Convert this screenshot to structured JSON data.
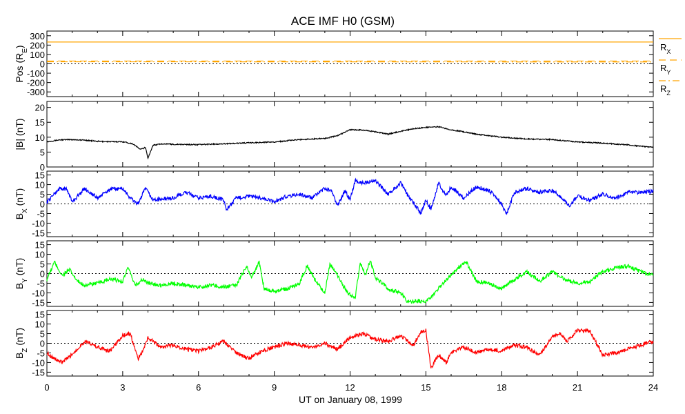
{
  "title": "ACE IMF H0 (GSM)",
  "xlabel": "UT on January 08, 1999",
  "xlim": [
    0,
    24
  ],
  "xticks": [
    0,
    3,
    6,
    9,
    12,
    15,
    18,
    21,
    24
  ],
  "colors": {
    "pos_lines": "#ffa500",
    "bmag": "#000000",
    "bx": "#0000ff",
    "by": "#00ff00",
    "bz": "#ff0000",
    "zero_line": "#000000"
  },
  "chart_data": [
    {
      "type": "line",
      "panel": "position",
      "ylabel": "Pos (R",
      "ylabel_sub": "E",
      "ylabel_end": ")",
      "ylim": [
        -350,
        350
      ],
      "yticks": [
        300,
        200,
        100,
        0,
        -100,
        -200,
        -300
      ],
      "zero_line": true,
      "x": [
        0,
        24
      ],
      "series": [
        {
          "name": "R",
          "sub": "X",
          "values": [
            233,
            233
          ],
          "style": "solid"
        },
        {
          "name": "R",
          "sub": "Y",
          "values": [
            30,
            30
          ],
          "style": "dashed"
        },
        {
          "name": "R",
          "sub": "Z",
          "values": [
            22,
            20
          ],
          "style": "dashdot"
        }
      ]
    },
    {
      "type": "line",
      "panel": "bmag",
      "ylabel": "|B| (nT)",
      "ylim": [
        0,
        22
      ],
      "yticks": [
        20,
        15,
        10,
        5,
        0
      ],
      "zero_line": false,
      "x": [
        0,
        0.5,
        1,
        1.5,
        2,
        2.5,
        3,
        3.4,
        3.7,
        3.9,
        4.0,
        4.2,
        4.6,
        5,
        6,
        7,
        8,
        9,
        10,
        11,
        11.5,
        12,
        12.5,
        13,
        13.5,
        14,
        14.5,
        15,
        15.5,
        16,
        16.5,
        17,
        18,
        19,
        20,
        21,
        22,
        23,
        24
      ],
      "series": [
        {
          "name": "|B|",
          "values": [
            8.5,
            9.1,
            9.2,
            9.0,
            8.6,
            8.5,
            8.5,
            7.8,
            5.9,
            6.5,
            3.0,
            7.3,
            7.8,
            7.6,
            7.5,
            7.8,
            8.1,
            8.4,
            9.2,
            9.6,
            10.5,
            12.5,
            12.4,
            11.8,
            11.0,
            12.0,
            12.8,
            13.3,
            13.5,
            12.5,
            11.8,
            11.0,
            10.0,
            9.4,
            9.2,
            8.4,
            8.0,
            7.4,
            6.6
          ]
        }
      ]
    },
    {
      "type": "line",
      "panel": "bx",
      "ylabel": "B",
      "ylabel_sub": "X",
      "ylabel_end": " (nT)",
      "ylim": [
        -17,
        17
      ],
      "yticks": [
        15,
        10,
        5,
        0,
        -5,
        -10,
        -15
      ],
      "zero_line": true,
      "x": [
        0,
        0.2,
        0.5,
        0.8,
        1.0,
        1.5,
        2.0,
        2.5,
        3.0,
        3.3,
        3.6,
        3.9,
        4.2,
        5.0,
        5.5,
        6.0,
        6.5,
        7.0,
        7.1,
        7.5,
        8.0,
        8.5,
        9.0,
        9.5,
        10.0,
        10.5,
        11.0,
        11.3,
        11.5,
        11.8,
        12.0,
        12.2,
        12.5,
        13.0,
        13.5,
        14.0,
        14.3,
        14.6,
        14.8,
        15.0,
        15.2,
        15.5,
        15.8,
        16.0,
        16.5,
        17.0,
        17.5,
        17.9,
        18.2,
        18.5,
        19.0,
        19.5,
        20.0,
        20.4,
        20.7,
        21.0,
        21.5,
        22.0,
        22.5,
        23.0,
        23.5,
        24.0
      ],
      "series": [
        {
          "name": "B",
          "sub": "X",
          "values": [
            1,
            4,
            8,
            7.5,
            1,
            8,
            3,
            7.5,
            8,
            3,
            0,
            8,
            2,
            3,
            6,
            3,
            4,
            2,
            -3,
            3,
            4,
            3,
            1,
            4,
            5,
            3,
            8,
            6,
            -1,
            7,
            2,
            12,
            11,
            12,
            5,
            11,
            4,
            -1,
            -5,
            2,
            -3,
            11,
            4,
            9,
            3,
            9,
            7,
            2,
            -5,
            6,
            8,
            6,
            7,
            3,
            -1,
            4,
            2,
            5,
            3,
            6,
            6,
            6.5
          ]
        }
      ]
    },
    {
      "type": "line",
      "panel": "by",
      "ylabel": "B",
      "ylabel_sub": "Y",
      "ylabel_end": " (nT)",
      "ylim": [
        -17,
        17
      ],
      "yticks": [
        15,
        10,
        5,
        0,
        -5,
        -10,
        -15
      ],
      "zero_line": true,
      "x": [
        0,
        0.3,
        0.6,
        0.9,
        1.2,
        1.5,
        2.0,
        2.5,
        3.0,
        3.2,
        3.5,
        3.8,
        4.0,
        4.5,
        5.0,
        5.5,
        6.0,
        6.5,
        7.0,
        7.5,
        7.9,
        8.1,
        8.4,
        8.6,
        9.0,
        9.5,
        10.0,
        10.3,
        10.6,
        11.0,
        11.2,
        11.5,
        11.9,
        12.2,
        12.4,
        12.6,
        12.8,
        13.0,
        13.5,
        14.0,
        14.3,
        14.6,
        15.0,
        15.3,
        15.6,
        16.0,
        16.3,
        16.6,
        17.0,
        17.5,
        18.0,
        18.5,
        19.0,
        19.5,
        20.0,
        20.5,
        21.0,
        21.5,
        22.0,
        22.5,
        23.0,
        23.5,
        24.0
      ],
      "series": [
        {
          "name": "B",
          "sub": "Y",
          "values": [
            -3,
            6,
            -1,
            2,
            -4,
            -6,
            -5,
            -3,
            -4,
            3,
            -6,
            -3,
            -5,
            -6,
            -5,
            -6,
            -7,
            -6,
            -7,
            -6,
            4,
            -2,
            6,
            -8,
            -9,
            -8,
            -5,
            4,
            -3,
            -10,
            5,
            -1,
            -10,
            -13,
            6,
            -1,
            7,
            -2,
            -8,
            -10,
            -15,
            -14,
            -15,
            -11,
            -6,
            -1,
            3,
            6,
            -4,
            -5,
            -8,
            -3,
            1,
            -4,
            1,
            -3,
            -5,
            -4,
            1,
            3,
            4,
            1,
            -1
          ]
        }
      ]
    },
    {
      "type": "line",
      "panel": "bz",
      "ylabel": "B",
      "ylabel_sub": "Z",
      "ylabel_end": " (nT)",
      "ylim": [
        -17,
        17
      ],
      "yticks": [
        15,
        10,
        5,
        0,
        -5,
        -10,
        -15
      ],
      "zero_line": true,
      "x": [
        0,
        0.3,
        0.6,
        0.9,
        1.2,
        1.5,
        2.0,
        2.5,
        3.0,
        3.3,
        3.6,
        3.8,
        4.0,
        4.5,
        5.0,
        5.5,
        6.0,
        6.5,
        7.0,
        7.5,
        8.0,
        8.5,
        9.0,
        9.5,
        10.0,
        10.5,
        11.0,
        11.5,
        12.0,
        12.5,
        13.0,
        13.5,
        14.0,
        14.5,
        14.8,
        15.0,
        15.2,
        15.5,
        15.8,
        16.0,
        16.5,
        17.0,
        17.5,
        18.0,
        18.5,
        19.0,
        19.5,
        20.0,
        20.3,
        20.6,
        21.0,
        21.5,
        22.0,
        22.5,
        23.0,
        23.5,
        24.0
      ],
      "series": [
        {
          "name": "B",
          "sub": "Z",
          "values": [
            -5,
            -8,
            -10,
            -7,
            -3,
            1,
            -2,
            -4,
            4,
            5,
            -8,
            -4,
            3,
            -2,
            -1,
            -3,
            -4,
            -2,
            1,
            -5,
            -8,
            -4,
            -2,
            0,
            -1,
            -2,
            0,
            -3,
            3,
            5,
            2,
            1,
            4,
            -1,
            6,
            7,
            -13,
            -6,
            -10,
            -5,
            -2,
            -5,
            -3,
            -4,
            -1,
            -2,
            -6,
            3,
            5,
            1,
            7,
            6,
            -6,
            -5,
            -3,
            -1,
            1
          ]
        }
      ]
    }
  ]
}
